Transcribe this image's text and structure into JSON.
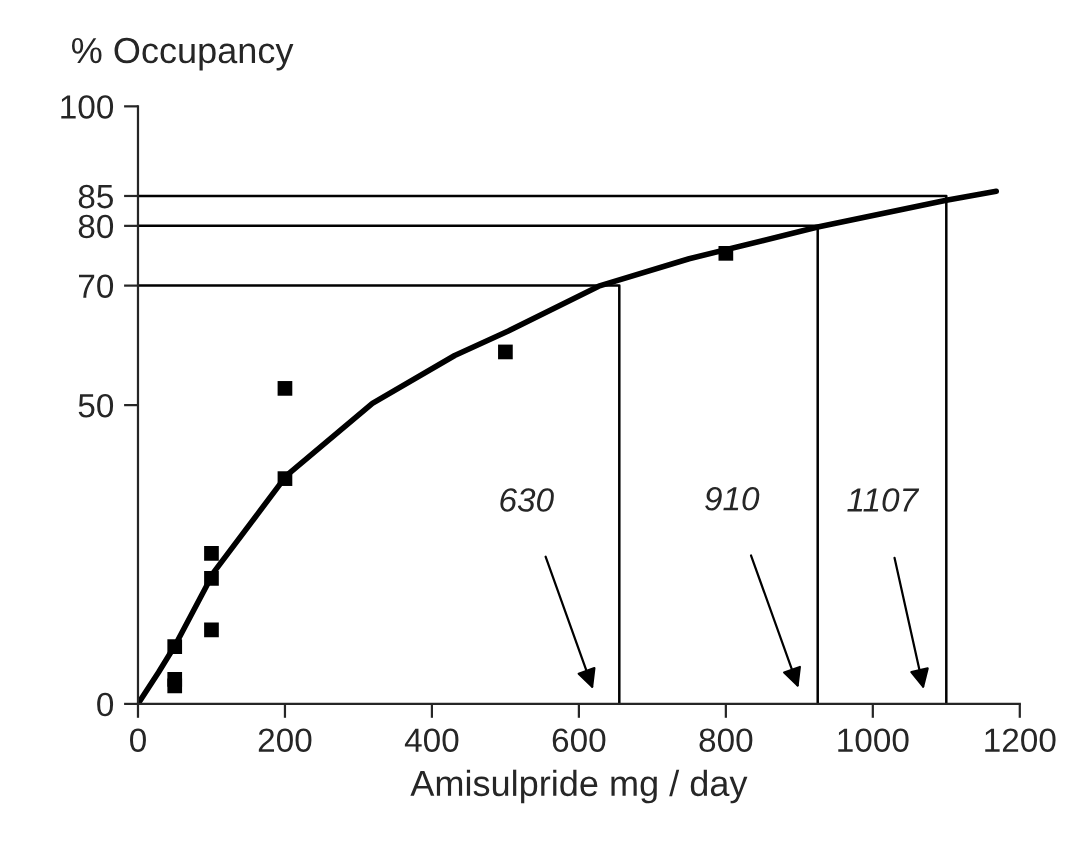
{
  "chart_data": {
    "type": "scatter",
    "xlabel": "Amisulpride mg / day",
    "ylabel": "% Occupancy",
    "xlim": [
      0,
      1200
    ],
    "ylim": [
      0,
      100
    ],
    "xticks": [
      0,
      200,
      400,
      600,
      800,
      1000,
      1200
    ],
    "yticks": [
      0,
      50,
      70,
      80,
      85,
      100
    ],
    "marker": "square",
    "grid": false,
    "legend": false,
    "series": [
      {
        "color": "#000000",
        "x": [
          50,
          50,
          50,
          100,
          100,
          100,
          200,
          200,
          500,
          800
        ],
        "values": [
          9.6,
          4.1,
          3.0,
          25.2,
          21.0,
          12.4,
          52.8,
          37.7,
          58.9,
          75.4
        ]
      },
      {
        "type": "line",
        "color": "#000000",
        "marker": "none",
        "x": [
          0,
          28,
          51,
          103,
          202,
          319,
          431,
          504,
          627,
          750,
          925,
          1100,
          1168
        ],
        "values": [
          0,
          5.3,
          9.9,
          22,
          38.2,
          50.3,
          58.3,
          62.4,
          69.9,
          74.5,
          79.8,
          84.3,
          85.8
        ]
      },
      {
        "type": "line",
        "color": "#000000",
        "marker": "none",
        "x": [
          0,
          655,
          655
        ],
        "values": [
          70,
          70,
          0
        ]
      },
      {
        "type": "line",
        "color": "#000000",
        "marker": "none",
        "x": [
          0,
          925,
          925
        ],
        "values": [
          80,
          80,
          0
        ]
      },
      {
        "type": "line",
        "color": "#000000",
        "marker": "none",
        "x": [
          0,
          1100,
          1100
        ],
        "values": [
          85,
          85,
          0
        ]
      }
    ],
    "annotations": [
      "630",
      "910",
      "1107"
    ]
  }
}
